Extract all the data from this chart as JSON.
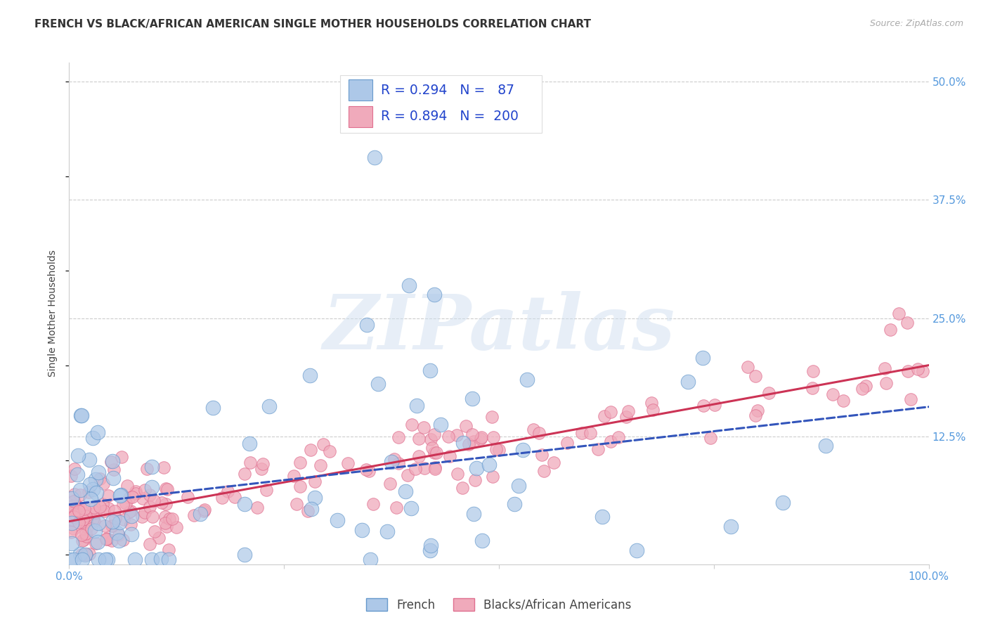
{
  "title": "FRENCH VS BLACK/AFRICAN AMERICAN SINGLE MOTHER HOUSEHOLDS CORRELATION CHART",
  "source": "Source: ZipAtlas.com",
  "ylabel": "Single Mother Households",
  "xlabel": "",
  "x_min": 0.0,
  "x_max": 1.0,
  "y_min": -0.01,
  "y_max": 0.52,
  "y_ticks": [
    0.125,
    0.25,
    0.375,
    0.5
  ],
  "y_tick_labels": [
    "12.5%",
    "25.0%",
    "37.5%",
    "50.0%"
  ],
  "french_fill": "#adc8e8",
  "french_edge": "#6699cc",
  "black_fill": "#f0aabb",
  "black_edge": "#e07090",
  "trend_french_color": "#3355bb",
  "trend_black_color": "#cc3355",
  "legend_label_french": "French",
  "legend_label_black": "Blacks/African Americans",
  "r_french": 0.294,
  "n_french": 87,
  "r_black": 0.894,
  "n_black": 200,
  "watermark": "ZIPatlas",
  "background_color": "#ffffff",
  "grid_color": "#cccccc",
  "title_fontsize": 11,
  "axis_label_fontsize": 10,
  "tick_fontsize": 11,
  "tick_color": "#5599dd",
  "title_color": "#333333",
  "source_color": "#aaaaaa"
}
